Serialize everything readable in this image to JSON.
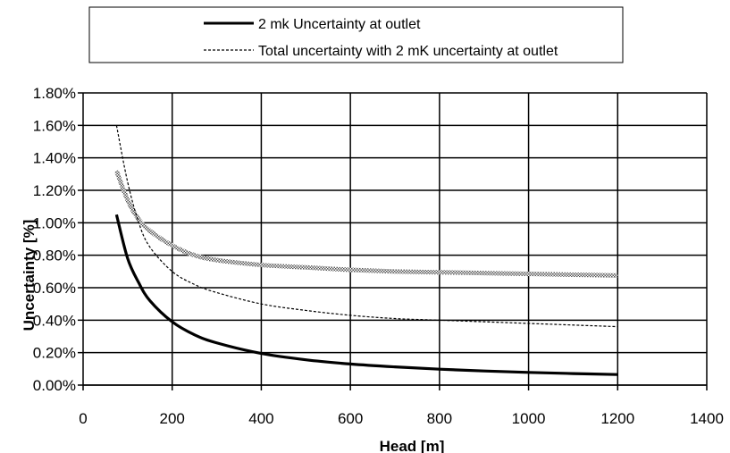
{
  "chart_data": {
    "type": "line",
    "xlabel": "Head [m]",
    "ylabel": "Uncertainty [%]",
    "xlim": [
      0,
      1400
    ],
    "ylim": [
      0,
      1.8
    ],
    "x_ticks": [
      "0",
      "200",
      "400",
      "600",
      "800",
      "1000",
      "1200",
      "1400"
    ],
    "y_ticks": [
      "0.00%",
      "0.20%",
      "0.40%",
      "0.60%",
      "0.80%",
      "1.00%",
      "1.20%",
      "1.40%",
      "1.60%",
      "1.80%"
    ],
    "grid": true,
    "legend_position": "top",
    "series": [
      {
        "name": "2 mk Uncertainty at outlet",
        "style": "solid-thick",
        "color": "#000000",
        "x": [
          75,
          100,
          125,
          150,
          200,
          250,
          300,
          400,
          500,
          600,
          700,
          800,
          900,
          1000,
          1100,
          1200
        ],
        "y": [
          1.05,
          0.78,
          0.63,
          0.52,
          0.39,
          0.31,
          0.26,
          0.195,
          0.156,
          0.13,
          0.112,
          0.098,
          0.087,
          0.078,
          0.071,
          0.065
        ]
      },
      {
        "name": "Total uncertainty with 2 mK uncertainty at outlet",
        "style": "dashed",
        "color": "#000000",
        "x": [
          75,
          100,
          125,
          150,
          200,
          250,
          300,
          400,
          500,
          600,
          700,
          800,
          900,
          1000,
          1100,
          1200
        ],
        "y": [
          1.6,
          1.25,
          1.0,
          0.85,
          0.7,
          0.62,
          0.57,
          0.5,
          0.46,
          0.43,
          0.41,
          0.4,
          0.39,
          0.38,
          0.37,
          0.36
        ]
      },
      {
        "name": "",
        "style": "hatched-band",
        "color": "#9a9a9a",
        "x": [
          75,
          100,
          125,
          150,
          200,
          250,
          300,
          400,
          500,
          600,
          700,
          800,
          900,
          1000,
          1100,
          1200
        ],
        "y": [
          1.32,
          1.14,
          1.02,
          0.95,
          0.86,
          0.8,
          0.77,
          0.74,
          0.725,
          0.71,
          0.7,
          0.695,
          0.69,
          0.685,
          0.68,
          0.675
        ]
      }
    ]
  }
}
